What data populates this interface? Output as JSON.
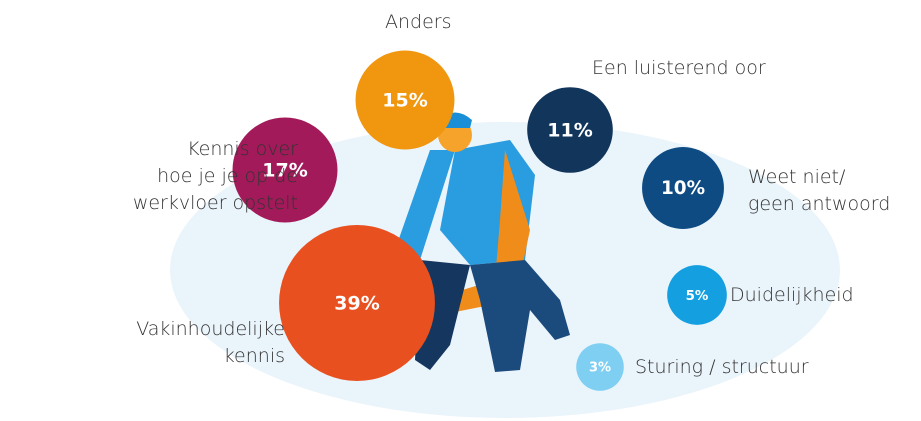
{
  "chart_data": {
    "type": "bubble",
    "categories": [
      "Vakinhoudelijke\nkennis",
      "Kennis over\nhoe je je op de\nwerkvloer opstelt",
      "Anders",
      "Een luisterend oor",
      "Weet niet/\ngeen antwoord",
      "Duidelijkheid",
      "Sturing / structuur"
    ],
    "values": [
      39,
      17,
      15,
      11,
      10,
      5,
      3
    ],
    "value_labels": [
      "39%",
      "17%",
      "15%",
      "11%",
      "10%",
      "5%",
      "3%"
    ],
    "colors": [
      "#e8501f",
      "#a31a5a",
      "#f0960f",
      "#12355b",
      "#0e4b82",
      "#139fe0",
      "#7fcff3"
    ]
  }
}
